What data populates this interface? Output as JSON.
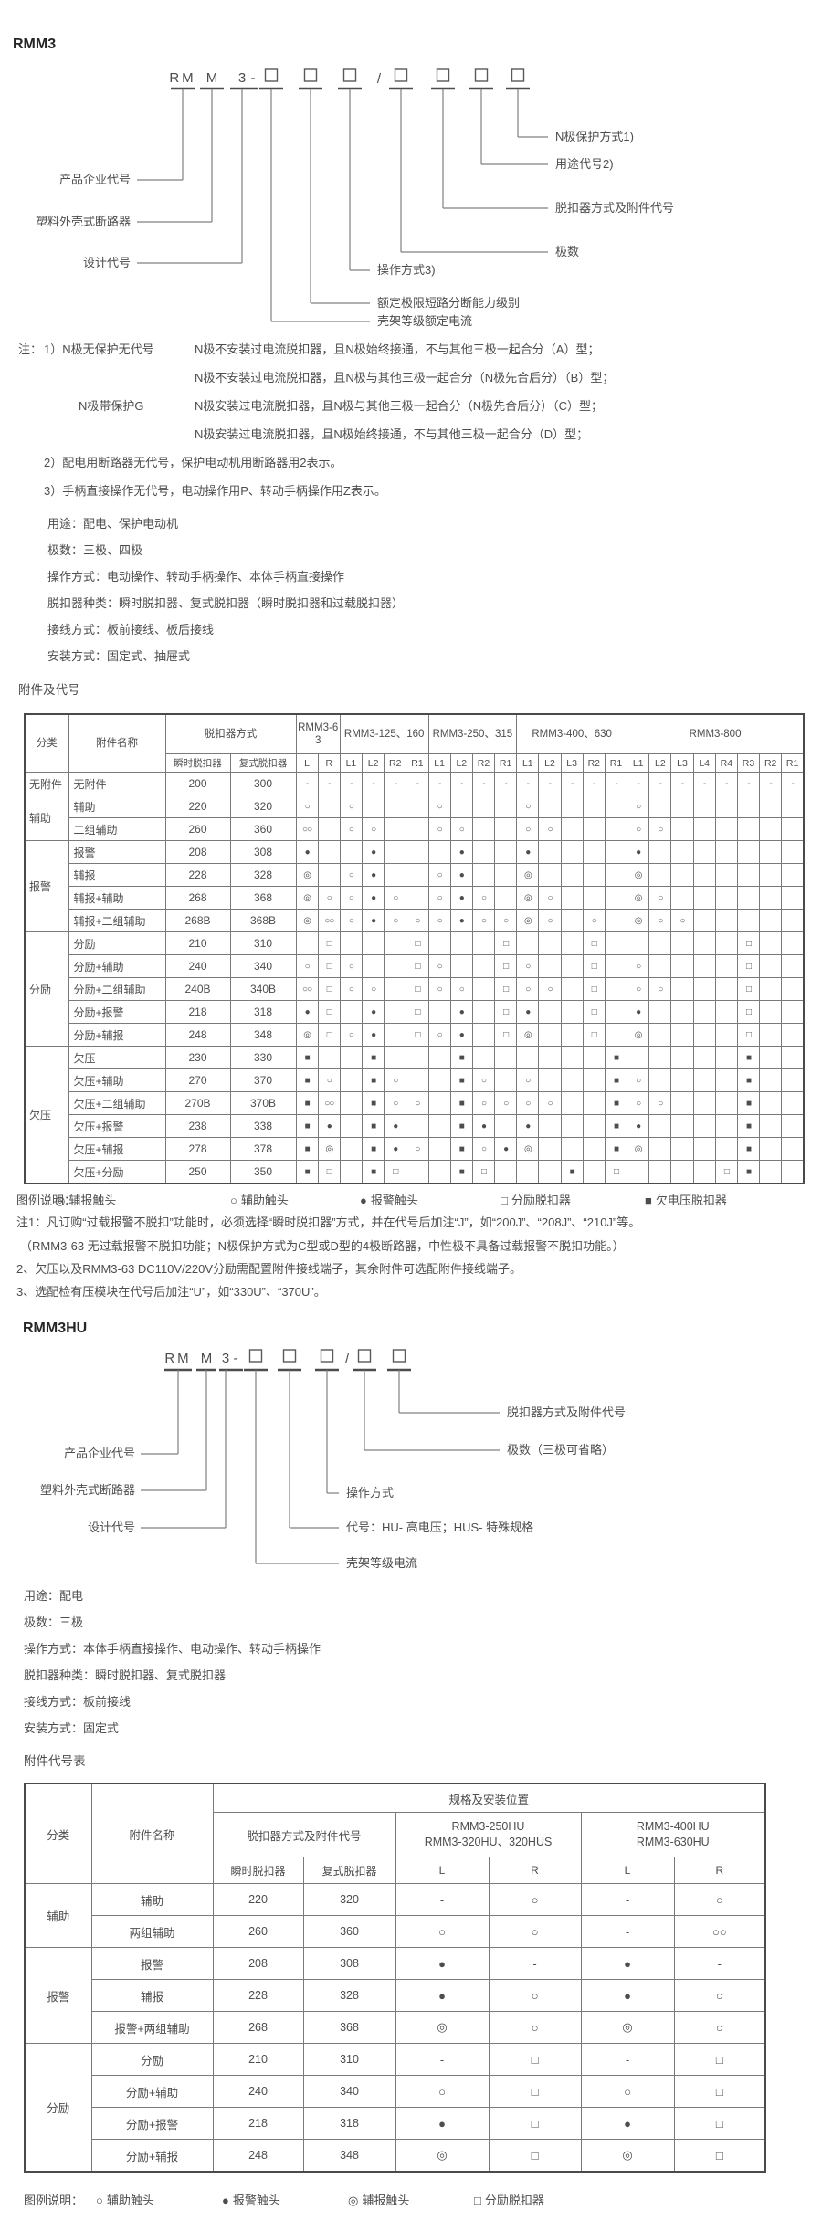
{
  "s1": {
    "title": "RMM3",
    "model": {
      "p1": "RM",
      "p2": "M",
      "p3": "3",
      "dash": "-",
      "slash": "/"
    },
    "diagram_left": [
      "产品企业代号",
      "塑料外壳式断路器",
      "设计代号"
    ],
    "diagram_right": [
      "N极保护方式1)",
      "用途代号2)",
      "脱扣器方式及附件代号",
      "极数",
      "操作方式3)",
      "额定极限短路分断能力级别",
      "壳架等级额定电流"
    ],
    "note_label": "注：",
    "note_terms": [
      "1）N极无保护无代号",
      "N极带保护G"
    ],
    "note_descs": [
      "N极不安装过电流脱扣器，且N极始终接通，不与其他三极一起合分（A）型；",
      "N极不安装过电流脱扣器，且N极与其他三极一起合分（N极先合后分）（B）型；",
      "N极安装过电流脱扣器，且N极与其他三极一起合分（N极先合后分）（C）型；",
      "N极安装过电流脱扣器，且N极始终接通，不与其他三极一起合分（D）型；"
    ],
    "note_23": [
      "2）配电用断路器无代号，保护电动机用断路器用2表示。",
      "3）手柄直接操作无代号，电动操作用P、转动手柄操作用Z表示。"
    ],
    "info": [
      "用途：配电、保护电动机",
      "极数：三极、四极",
      "操作方式：电动操作、转动手柄操作、本体手柄直接操作",
      "脱扣器种类：瞬时脱扣器、复式脱扣器（瞬时脱扣器和过载脱扣器）",
      "接线方式：板前接线、板后接线",
      "安装方式：固定式、抽屉式"
    ],
    "table_title": "附件及代号",
    "table1": {
      "col_class": "分类",
      "col_name": "附件名称",
      "col_mode": "脱扣器方式",
      "sub_inst": "瞬时脱扣器",
      "sub_comp": "复式脱扣器",
      "frames": [
        {
          "label": "RMM3-63",
          "subs": [
            "L",
            "R"
          ]
        },
        {
          "label": "RMM3-125、160",
          "subs": [
            "L1",
            "L2",
            "R2",
            "R1"
          ]
        },
        {
          "label": "RMM3-250、315",
          "subs": [
            "L1",
            "L2",
            "R2",
            "R1"
          ]
        },
        {
          "label": "RMM3-400、630",
          "subs": [
            "L1",
            "L2",
            "L3",
            "R2",
            "R1"
          ]
        },
        {
          "label": "RMM3-800",
          "subs": [
            "L1",
            "L2",
            "L3",
            "L4",
            "R4",
            "R3",
            "R2",
            "R1"
          ]
        }
      ],
      "groups": [
        {
          "name": "无附件",
          "rows": [
            {
              "name": "无附件",
              "inst": "200",
              "comp": "300",
              "cells": [
                "-",
                "-",
                "-",
                "-",
                "-",
                "-",
                "-",
                "-",
                "-",
                "-",
                "-",
                "-",
                "-",
                "-",
                "-",
                "-",
                "-",
                "-",
                "-",
                "-",
                "-",
                "-",
                "-"
              ]
            }
          ]
        },
        {
          "name": "辅助",
          "rows": [
            {
              "name": "辅助",
              "inst": "220",
              "comp": "320",
              "cells": [
                "○",
                "",
                "○",
                "",
                "",
                "",
                "○",
                "",
                "",
                "",
                "○",
                "",
                "",
                "",
                "",
                "○",
                "",
                "",
                "",
                "",
                "",
                "",
                ""
              ]
            },
            {
              "name": "二组辅助",
              "inst": "260",
              "comp": "360",
              "cells": [
                "○○",
                "",
                "○",
                "○",
                "",
                "",
                "○",
                "○",
                "",
                "",
                "○",
                "○",
                "",
                "",
                "",
                "○",
                "○",
                "",
                "",
                "",
                "",
                "",
                ""
              ]
            }
          ]
        },
        {
          "name": "报警",
          "rows": [
            {
              "name": "报警",
              "inst": "208",
              "comp": "308",
              "cells": [
                "●",
                "",
                "",
                "●",
                "",
                "",
                "",
                "●",
                "",
                "",
                "●",
                "",
                "",
                "",
                "",
                "●",
                "",
                "",
                "",
                "",
                "",
                "",
                ""
              ]
            },
            {
              "name": "辅报",
              "inst": "228",
              "comp": "328",
              "cells": [
                "◎",
                "",
                "○",
                "●",
                "",
                "",
                "○",
                "●",
                "",
                "",
                "◎",
                "",
                "",
                "",
                "",
                "◎",
                "",
                "",
                "",
                "",
                "",
                "",
                ""
              ]
            },
            {
              "name": "辅报+辅助",
              "inst": "268",
              "comp": "368",
              "cells": [
                "◎",
                "○",
                "○",
                "●",
                "○",
                "",
                "○",
                "●",
                "○",
                "",
                "◎",
                "○",
                "",
                "",
                "",
                "◎",
                "○",
                "",
                "",
                "",
                "",
                "",
                ""
              ]
            },
            {
              "name": "辅报+二组辅助",
              "inst": "268B",
              "comp": "368B",
              "cells": [
                "◎",
                "○○",
                "○",
                "●",
                "○",
                "○",
                "○",
                "●",
                "○",
                "○",
                "◎",
                "○",
                "",
                "○",
                "",
                "◎",
                "○",
                "○",
                "",
                "",
                "",
                "",
                ""
              ]
            }
          ]
        },
        {
          "name": "分励",
          "rows": [
            {
              "name": "分励",
              "inst": "210",
              "comp": "310",
              "cells": [
                "",
                "□",
                "",
                "",
                "",
                "□",
                "",
                "",
                "",
                "□",
                "",
                "",
                "",
                "□",
                "",
                "",
                "",
                "",
                "",
                "",
                "□",
                "",
                ""
              ]
            },
            {
              "name": "分励+辅助",
              "inst": "240",
              "comp": "340",
              "cells": [
                "○",
                "□",
                "○",
                "",
                "",
                "□",
                "○",
                "",
                "",
                "□",
                "○",
                "",
                "",
                "□",
                "",
                "○",
                "",
                "",
                "",
                "",
                "□",
                "",
                ""
              ]
            },
            {
              "name": "分励+二组辅助",
              "inst": "240B",
              "comp": "340B",
              "cells": [
                "○○",
                "□",
                "○",
                "○",
                "",
                "□",
                "○",
                "○",
                "",
                "□",
                "○",
                "○",
                "",
                "□",
                "",
                "○",
                "○",
                "",
                "",
                "",
                "□",
                "",
                ""
              ]
            },
            {
              "name": "分励+报警",
              "inst": "218",
              "comp": "318",
              "cells": [
                "●",
                "□",
                "",
                "●",
                "",
                "□",
                "",
                "●",
                "",
                "□",
                "●",
                "",
                "",
                "□",
                "",
                "●",
                "",
                "",
                "",
                "",
                "□",
                "",
                ""
              ]
            },
            {
              "name": "分励+辅报",
              "inst": "248",
              "comp": "348",
              "cells": [
                "◎",
                "□",
                "○",
                "●",
                "",
                "□",
                "○",
                "●",
                "",
                "□",
                "◎",
                "",
                "",
                "□",
                "",
                "◎",
                "",
                "",
                "",
                "",
                "□",
                "",
                ""
              ]
            }
          ]
        },
        {
          "name": "欠压",
          "rows": [
            {
              "name": "欠压",
              "inst": "230",
              "comp": "330",
              "cells": [
                "■",
                "",
                "",
                "■",
                "",
                "",
                "",
                "■",
                "",
                "",
                "",
                "",
                "",
                "",
                "■",
                "",
                "",
                "",
                "",
                "",
                "■",
                "",
                ""
              ]
            },
            {
              "name": "欠压+辅助",
              "inst": "270",
              "comp": "370",
              "cells": [
                "■",
                "○",
                "",
                "■",
                "○",
                "",
                "",
                "■",
                "○",
                "",
                "○",
                "",
                "",
                "",
                "■",
                "○",
                "",
                "",
                "",
                "",
                "■",
                "",
                ""
              ]
            },
            {
              "name": "欠压+二组辅助",
              "inst": "270B",
              "comp": "370B",
              "cells": [
                "■",
                "○○",
                "",
                "■",
                "○",
                "○",
                "",
                "■",
                "○",
                "○",
                "○",
                "○",
                "",
                "",
                "■",
                "○",
                "○",
                "",
                "",
                "",
                "■",
                "",
                ""
              ]
            },
            {
              "name": "欠压+报警",
              "inst": "238",
              "comp": "338",
              "cells": [
                "■",
                "●",
                "",
                "■",
                "●",
                "",
                "",
                "■",
                "●",
                "",
                "●",
                "",
                "",
                "",
                "■",
                "●",
                "",
                "",
                "",
                "",
                "■",
                "",
                ""
              ]
            },
            {
              "name": "欠压+辅报",
              "inst": "278",
              "comp": "378",
              "cells": [
                "■",
                "◎",
                "",
                "■",
                "●",
                "○",
                "",
                "■",
                "○",
                "●",
                "◎",
                "",
                "",
                "",
                "■",
                "◎",
                "",
                "",
                "",
                "",
                "■",
                "",
                ""
              ]
            },
            {
              "name": "欠压+分励",
              "inst": "250",
              "comp": "350",
              "cells": [
                "■",
                "□",
                "",
                "■",
                "□",
                "",
                "",
                "■",
                "□",
                "",
                "",
                "",
                "■",
                "",
                "□",
                "",
                "",
                "",
                "",
                "□",
                "■",
                "",
                ""
              ]
            }
          ]
        }
      ]
    },
    "legend": {
      "label": "图例说明：",
      "items": [
        {
          "sym": "◎",
          "text": "辅报触头"
        },
        {
          "sym": "○",
          "text": "辅助触头"
        },
        {
          "sym": "●",
          "text": "报警触头"
        },
        {
          "sym": "□",
          "text": "分励脱扣器"
        },
        {
          "sym": "■",
          "text": "欠电压脱扣器"
        }
      ]
    },
    "footnotes": [
      "注1：凡订购“过载报警不脱扣”功能时，必须选择“瞬时脱扣器”方式，并在代号后加注“J”，如“200J”、“208J”、“210J”等。",
      "（RMM3-63 无过载报警不脱扣功能；N极保护方式为C型或D型的4极断路器，中性极不具备过载报警不脱扣功能。）",
      "2、欠压以及RMM3-63 DC110V/220V分励需配置附件接线端子，其余附件可选配附件接线端子。",
      "3、选配检有压模块在代号后加注“U”，如“330U”、“370U”。"
    ]
  },
  "s2": {
    "title": "RMM3HU",
    "model": {
      "p1": "RM",
      "p2": "M",
      "p3": "3",
      "dash": "-",
      "slash": "/"
    },
    "diagram_left": [
      "产品企业代号",
      "塑料外壳式断路器",
      "设计代号"
    ],
    "diagram_right": [
      "脱扣器方式及附件代号",
      "极数（三极可省略）",
      "操作方式",
      "代号：HU- 高电压；HUS- 特殊规格",
      "壳架等级电流"
    ],
    "info": [
      "用途：配电",
      "极数：三极",
      "操作方式：本体手柄直接操作、电动操作、转动手柄操作",
      "脱扣器种类：瞬时脱扣器、复式脱扣器",
      "接线方式：板前接线",
      "安装方式：固定式"
    ],
    "table_title": "附件代号表",
    "table2": {
      "col_class": "分类",
      "col_name": "附件名称",
      "top": "规格及安装位置",
      "mode": "脱扣器方式及附件代号",
      "sub_inst": "瞬时脱扣器",
      "sub_comp": "复式脱扣器",
      "frames": [
        {
          "line1": "RMM3-250HU",
          "line2": "RMM3-320HU、320HUS",
          "subs": [
            "L",
            "R"
          ]
        },
        {
          "line1": "RMM3-400HU",
          "line2": "RMM3-630HU",
          "subs": [
            "L",
            "R"
          ]
        }
      ],
      "groups": [
        {
          "name": "辅助",
          "rows": [
            {
              "name": "辅助",
              "inst": "220",
              "comp": "320",
              "cells": [
                "-",
                "○",
                "-",
                "○"
              ]
            },
            {
              "name": "两组辅助",
              "inst": "260",
              "comp": "360",
              "cells": [
                "○",
                "○",
                "-",
                "○○"
              ]
            }
          ]
        },
        {
          "name": "报警",
          "rows": [
            {
              "name": "报警",
              "inst": "208",
              "comp": "308",
              "cells": [
                "●",
                "-",
                "●",
                "-"
              ]
            },
            {
              "name": "辅报",
              "inst": "228",
              "comp": "328",
              "cells": [
                "●",
                "○",
                "●",
                "○"
              ]
            },
            {
              "name": "报警+两组辅助",
              "inst": "268",
              "comp": "368",
              "cells": [
                "◎",
                "○",
                "◎",
                "○"
              ]
            }
          ]
        },
        {
          "name": "分励",
          "rows": [
            {
              "name": "分励",
              "inst": "210",
              "comp": "310",
              "cells": [
                "-",
                "□",
                "-",
                "□"
              ]
            },
            {
              "name": "分励+辅助",
              "inst": "240",
              "comp": "340",
              "cells": [
                "○",
                "□",
                "○",
                "□"
              ]
            },
            {
              "name": "分励+报警",
              "inst": "218",
              "comp": "318",
              "cells": [
                "●",
                "□",
                "●",
                "□"
              ]
            },
            {
              "name": "分励+辅报",
              "inst": "248",
              "comp": "348",
              "cells": [
                "◎",
                "□",
                "◎",
                "□"
              ]
            }
          ]
        }
      ]
    },
    "legend": {
      "label": "图例说明：",
      "items": [
        {
          "sym": "○",
          "text": "辅助触头"
        },
        {
          "sym": "●",
          "text": "报警触头"
        },
        {
          "sym": "◎",
          "text": "辅报触头"
        },
        {
          "sym": "□",
          "text": "分励脱扣器"
        }
      ]
    }
  }
}
